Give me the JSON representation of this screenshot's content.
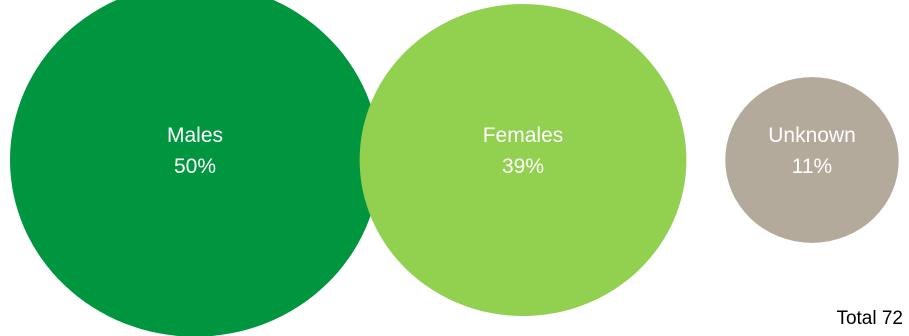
{
  "chart_data": {
    "type": "bubble",
    "categories": [
      "Males",
      "Females",
      "Unknown"
    ],
    "values": [
      50,
      39,
      11
    ],
    "value_labels": [
      "50%",
      "39%",
      "11%"
    ],
    "colors": [
      "#00963f",
      "#92d050",
      "#b4aa9c"
    ],
    "total_label": "Total 72"
  }
}
